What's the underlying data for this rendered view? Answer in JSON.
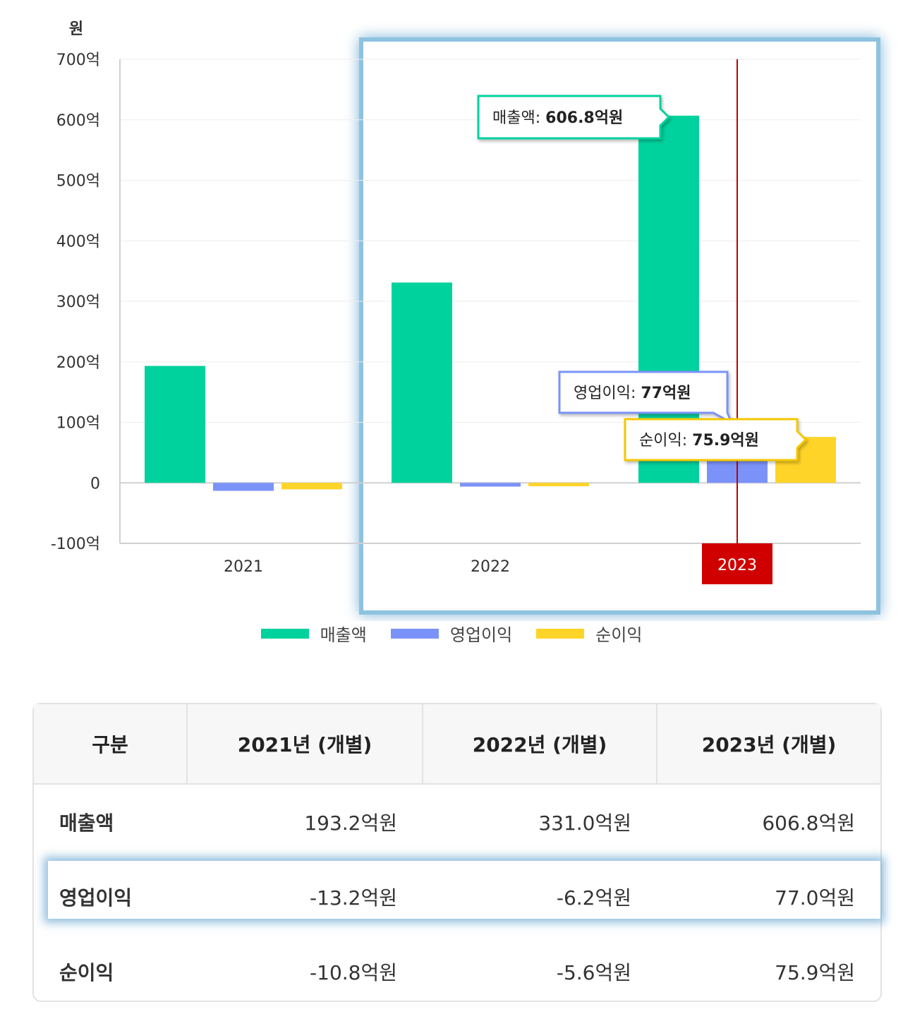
{
  "chart_data": {
    "type": "bar",
    "ylabel": "원",
    "categories": [
      "2021",
      "2022",
      "2023"
    ],
    "series": [
      {
        "name": "매출액",
        "values": [
          193.2,
          331.0,
          606.8
        ],
        "color": "#00D29E"
      },
      {
        "name": "영업이익",
        "values": [
          -13.2,
          -6.2,
          77.0
        ],
        "color": "#7B93F8"
      },
      {
        "name": "순이익",
        "values": [
          -10.8,
          -5.6,
          75.9
        ],
        "color": "#FFD428"
      }
    ],
    "ylim": [
      -100,
      700
    ],
    "yticks": [
      "700억",
      "600억",
      "500억",
      "400억",
      "300억",
      "200억",
      "100억",
      "0",
      "-100억"
    ],
    "grid": true,
    "legend_position": "bottom",
    "highlight_category": "2023",
    "tooltips": [
      {
        "label": "매출액",
        "value": "606.8억원",
        "color": "#00D29E"
      },
      {
        "label": "영업이익",
        "value": "77억원",
        "color": "#7B93F8"
      },
      {
        "label": "순이익",
        "value": "75.9억원",
        "color": "#F5C800"
      }
    ]
  },
  "table": {
    "headers": [
      "구분",
      "2021년 (개별)",
      "2022년 (개별)",
      "2023년 (개별)"
    ],
    "rows": [
      {
        "label": "매출액",
        "values": [
          "193.2억원",
          "331.0억원",
          "606.8억원"
        ]
      },
      {
        "label": "영업이익",
        "values": [
          "-13.2억원",
          "-6.2억원",
          "77.0억원"
        ]
      },
      {
        "label": "순이익",
        "values": [
          "-10.8억원",
          "-5.6억원",
          "75.9억원"
        ]
      }
    ]
  }
}
